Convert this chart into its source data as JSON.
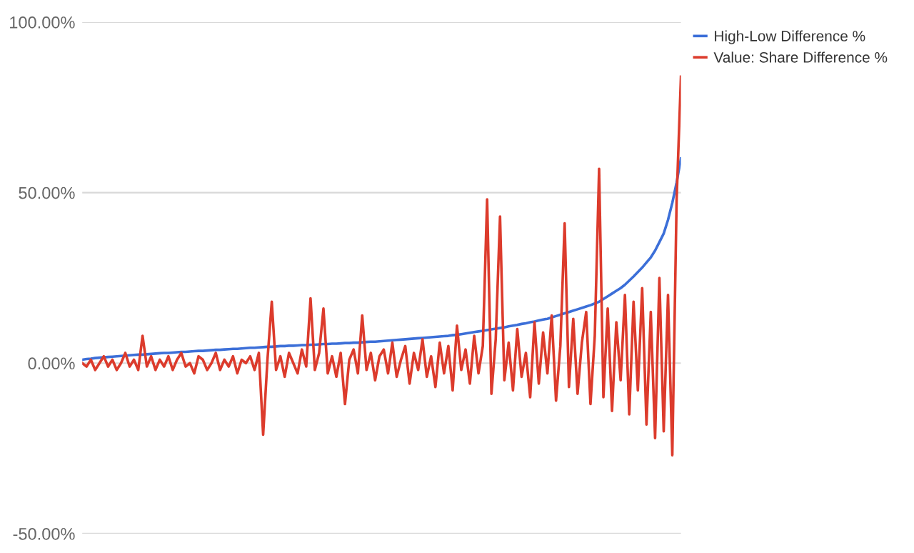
{
  "chart_data": {
    "type": "line",
    "categories": [
      null,
      null,
      null,
      null,
      null,
      null,
      null,
      null,
      null,
      null,
      null,
      null,
      null,
      null,
      null,
      null,
      null,
      null,
      null,
      null,
      null,
      null,
      null,
      null,
      null,
      null,
      null,
      null,
      null,
      null,
      null,
      null,
      null,
      null,
      null,
      null,
      null,
      null,
      null,
      null,
      null,
      null,
      null,
      null,
      null,
      null,
      null,
      null,
      null,
      null,
      null,
      null,
      null,
      null,
      null,
      null,
      null,
      null,
      null,
      null,
      null,
      null,
      null,
      null,
      null,
      null,
      null,
      null,
      null,
      null,
      null,
      null,
      null,
      null,
      null,
      null,
      null,
      null,
      null,
      null,
      null,
      null,
      null,
      null,
      null,
      null,
      null,
      null,
      null,
      null,
      null,
      null,
      null,
      null,
      null,
      null,
      null,
      null,
      null,
      null,
      null,
      null,
      null,
      null,
      null,
      null,
      null,
      null,
      null,
      null,
      null,
      null,
      null,
      null,
      null,
      null,
      null,
      null,
      null,
      null,
      null,
      null,
      null,
      null,
      null,
      null,
      null,
      null,
      null,
      null,
      null,
      null,
      null,
      null,
      null,
      null,
      null,
      null,
      null,
      null
    ],
    "series": [
      {
        "name": "High-Low Difference %",
        "color": "#3c6fd8",
        "values": [
          1,
          1.2,
          1.3,
          1.5,
          1.6,
          1.7,
          1.8,
          1.9,
          2,
          2.1,
          2.2,
          2.3,
          2.4,
          2.5,
          2.5,
          2.6,
          2.7,
          2.8,
          2.9,
          3,
          3,
          3.1,
          3.2,
          3.3,
          3.3,
          3.4,
          3.5,
          3.6,
          3.6,
          3.7,
          3.8,
          3.9,
          3.9,
          4,
          4.1,
          4.2,
          4.2,
          4.3,
          4.4,
          4.5,
          4.5,
          4.6,
          4.7,
          4.8,
          4.8,
          4.9,
          5,
          5,
          5.1,
          5.1,
          5.2,
          5.3,
          5.3,
          5.4,
          5.4,
          5.5,
          5.6,
          5.6,
          5.7,
          5.7,
          5.8,
          5.9,
          5.9,
          6,
          6,
          6.1,
          6.2,
          6.3,
          6.3,
          6.4,
          6.5,
          6.6,
          6.7,
          6.8,
          6.9,
          7,
          7.1,
          7.2,
          7.3,
          7.4,
          7.5,
          7.6,
          7.7,
          7.8,
          7.9,
          8,
          8.2,
          8.3,
          8.5,
          8.7,
          8.9,
          9.1,
          9.3,
          9.5,
          9.7,
          9.9,
          10.1,
          10.3,
          10.5,
          10.8,
          11,
          11.2,
          11.5,
          11.7,
          12,
          12.2,
          12.5,
          12.8,
          13,
          13.4,
          13.8,
          14.2,
          14.6,
          15,
          15.4,
          15.8,
          16.2,
          16.6,
          17,
          17.5,
          18,
          18.8,
          19.6,
          20.4,
          21.2,
          22,
          23,
          24.2,
          25.4,
          26.7,
          28,
          29.5,
          31,
          33,
          35.5,
          38,
          42,
          47,
          53,
          60
        ]
      },
      {
        "name": "Value: Share Difference %",
        "color": "#dc3b2c",
        "values": [
          0,
          -1,
          1,
          -2,
          0,
          2,
          -1,
          1,
          -2,
          0,
          3,
          -1,
          1,
          -2,
          8,
          -1,
          2,
          -2,
          1,
          -1,
          2,
          -2,
          1,
          3,
          -1,
          0,
          -3,
          2,
          1,
          -2,
          0,
          3,
          -2,
          1,
          -1,
          2,
          -3,
          1,
          0,
          2,
          -2,
          3,
          -21,
          1,
          18,
          -2,
          2,
          -4,
          3,
          0,
          -3,
          4,
          -1,
          19,
          -2,
          3,
          16,
          -3,
          2,
          -4,
          3,
          -12,
          1,
          4,
          -3,
          14,
          -2,
          3,
          -5,
          2,
          4,
          -3,
          6,
          -4,
          1,
          5,
          -6,
          3,
          -2,
          7,
          -4,
          2,
          -7,
          6,
          -3,
          5,
          -8,
          11,
          -2,
          4,
          -6,
          8,
          -3,
          5,
          48,
          -9,
          7,
          43,
          -5,
          6,
          -8,
          10,
          -4,
          3,
          -10,
          12,
          -6,
          9,
          -3,
          14,
          -11,
          5,
          41,
          -7,
          13,
          -9,
          6,
          15,
          -12,
          8,
          57,
          -10,
          16,
          -14,
          12,
          -5,
          20,
          -15,
          18,
          -8,
          22,
          -18,
          15,
          -22,
          25,
          -20,
          20,
          -27,
          48,
          84
        ]
      }
    ],
    "ylim": [
      -50,
      100
    ],
    "yticks": [
      {
        "value": -50,
        "label": "-50.00%"
      },
      {
        "value": 0,
        "label": "0.00%"
      },
      {
        "value": 50,
        "label": "50.00%"
      },
      {
        "value": 100,
        "label": "100.00%"
      }
    ],
    "grid": "y",
    "legend": "top right",
    "line_style": "solid",
    "marker": "none"
  }
}
